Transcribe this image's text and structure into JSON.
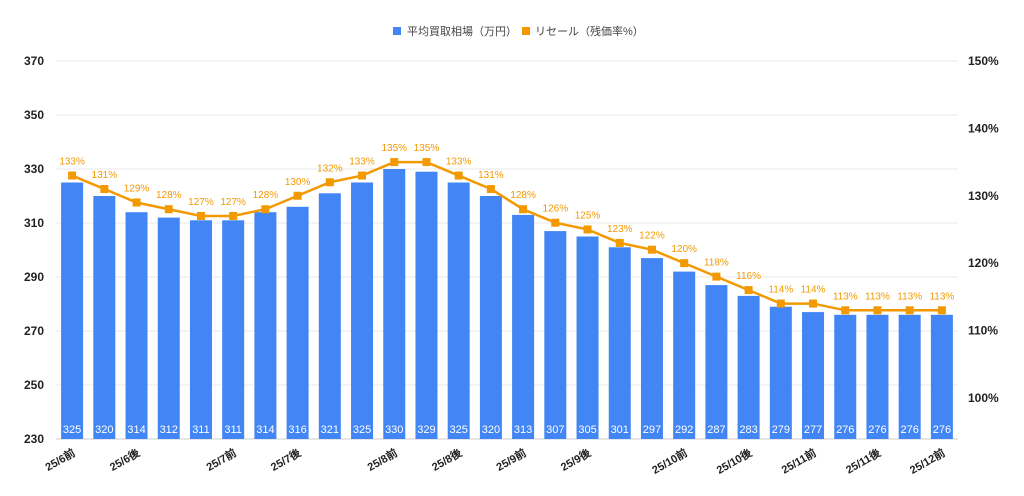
{
  "chart_data": {
    "type": "bar+line",
    "title": "",
    "categories": [
      "25/6前",
      "",
      "25/6後",
      "",
      "",
      "25/7前",
      "",
      "25/7後",
      "",
      "",
      "25/8前",
      "",
      "25/8後",
      "",
      "25/9前",
      "",
      "25/9後",
      "",
      "",
      "25/10前",
      "",
      "25/10後",
      "",
      "25/11前",
      "",
      "25/11後",
      "",
      "25/12前"
    ],
    "series": [
      {
        "name": "平均買取相場（万円）",
        "type": "bar",
        "axis": "left",
        "color": "#4285f4",
        "values": [
          325,
          320,
          314,
          312,
          311,
          311,
          314,
          316,
          321,
          325,
          330,
          329,
          325,
          320,
          313,
          307,
          305,
          301,
          297,
          292,
          287,
          283,
          279,
          277,
          276,
          276,
          276,
          276
        ]
      },
      {
        "name": "リセール（残価率%）",
        "type": "line",
        "axis": "right",
        "color": "#f29900",
        "values": [
          133,
          131,
          129,
          128,
          127,
          127,
          128,
          130,
          132,
          133,
          135,
          135,
          133,
          131,
          128,
          126,
          125,
          123,
          122,
          120,
          118,
          116,
          114,
          114,
          113,
          113,
          113,
          113
        ]
      }
    ],
    "y_left": {
      "min": 230,
      "max": 370,
      "ticks": [
        "230",
        "250",
        "270",
        "290",
        "310",
        "330",
        "350",
        "370"
      ]
    },
    "y_right": {
      "min": 93.9,
      "max": 150,
      "ticks": [
        "100%",
        "110%",
        "120%",
        "130%",
        "140%",
        "150%"
      ],
      "tick_values": [
        100,
        110,
        120,
        130,
        140,
        150
      ]
    },
    "legend": "top-center",
    "grid": true
  }
}
